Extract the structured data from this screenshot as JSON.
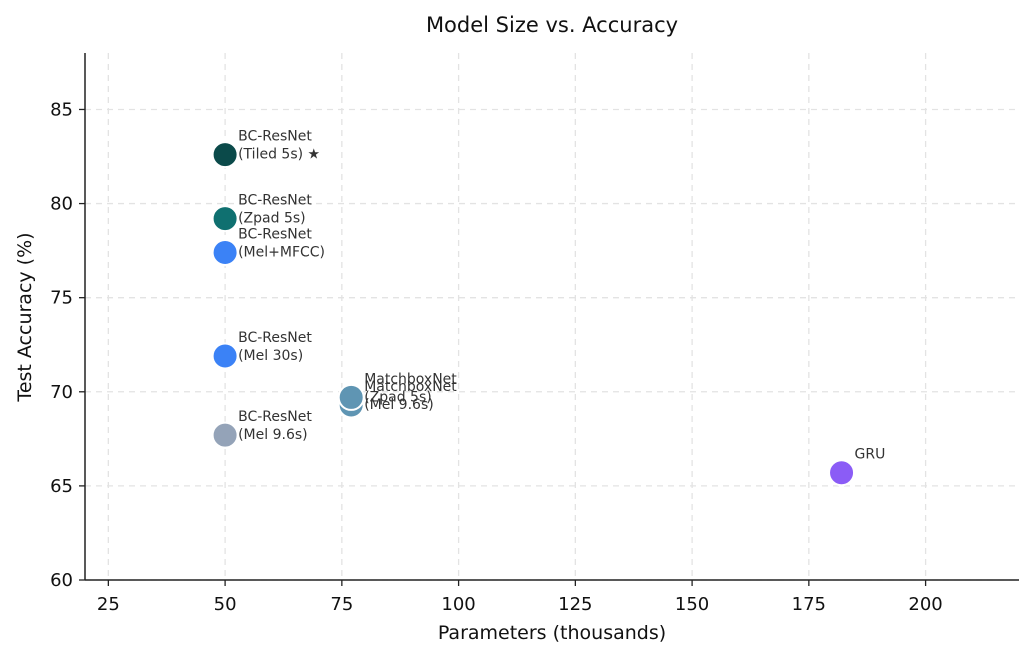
{
  "chart_data": {
    "type": "scatter",
    "title": "Model Size vs. Accuracy",
    "xlabel": "Parameters (thousands)",
    "ylabel": "Test Accuracy (%)",
    "xlim": [
      20,
      220
    ],
    "ylim": [
      60,
      88
    ],
    "xticks": [
      25,
      50,
      75,
      100,
      125,
      150,
      175,
      200
    ],
    "yticks": [
      60,
      65,
      70,
      75,
      80,
      85
    ],
    "grid": true,
    "points": [
      {
        "x": 50,
        "y": 82.6,
        "label": [
          "BC-ResNet",
          "(Tiled 5s) ★"
        ],
        "color": "#0b4a4a"
      },
      {
        "x": 50,
        "y": 79.2,
        "label": [
          "BC-ResNet",
          "(Zpad 5s)"
        ],
        "color": "#0f7070"
      },
      {
        "x": 50,
        "y": 77.4,
        "label": [
          "BC-ResNet",
          "(Mel+MFCC)"
        ],
        "color": "#3b82f6"
      },
      {
        "x": 50,
        "y": 71.9,
        "label": [
          "BC-ResNet",
          "(Mel 30s)"
        ],
        "color": "#3b82f6"
      },
      {
        "x": 50,
        "y": 67.7,
        "label": [
          "BC-ResNet",
          "(Mel 9.6s)"
        ],
        "color": "#94a3b8"
      },
      {
        "x": 77,
        "y": 69.3,
        "label": [
          "MatchboxNet",
          "(Mel 9.6s)"
        ],
        "color": "#5f95b3"
      },
      {
        "x": 77,
        "y": 69.7,
        "label": [
          "MatchboxNet",
          "(Zpad 5s)"
        ],
        "color": "#5f95b3"
      },
      {
        "x": 182,
        "y": 65.7,
        "label": [
          "GRU"
        ],
        "color": "#8b5cf6"
      }
    ]
  }
}
